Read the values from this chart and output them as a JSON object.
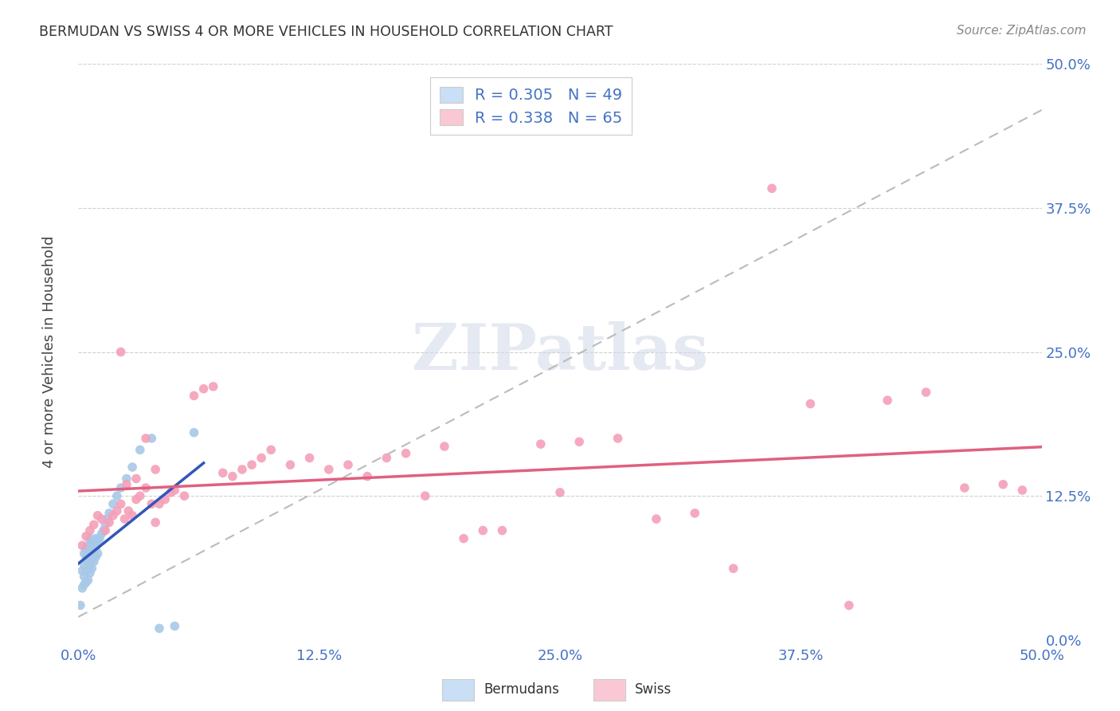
{
  "title": "BERMUDAN VS SWISS 4 OR MORE VEHICLES IN HOUSEHOLD CORRELATION CHART",
  "source": "Source: ZipAtlas.com",
  "ylabel": "4 or more Vehicles in Household",
  "xlim": [
    0.0,
    0.5
  ],
  "ylim": [
    0.0,
    0.5
  ],
  "xtick_labels": [
    "0.0%",
    "12.5%",
    "25.0%",
    "37.5%",
    "50.0%"
  ],
  "xtick_vals": [
    0.0,
    0.125,
    0.25,
    0.375,
    0.5
  ],
  "ytick_labels": [
    "0.0%",
    "12.5%",
    "25.0%",
    "37.5%",
    "50.0%"
  ],
  "ytick_vals": [
    0.0,
    0.125,
    0.25,
    0.375,
    0.5
  ],
  "bermudan_color": "#a8c8e8",
  "swiss_color": "#f4a0b8",
  "bermudan_line_color": "#3355bb",
  "swiss_line_color": "#e06080",
  "R_bermudan": 0.305,
  "N_bermudan": 49,
  "R_swiss": 0.338,
  "N_swiss": 65,
  "legend_box_color_bermudan": "#c8dff5",
  "legend_box_color_swiss": "#fac8d5",
  "watermark": "ZIPatlas",
  "background_color": "#ffffff",
  "grid_color": "#d0d0d0",
  "dash_line_color": "#bbbbbb",
  "bermudan_x": [
    0.001,
    0.002,
    0.002,
    0.003,
    0.003,
    0.003,
    0.003,
    0.004,
    0.004,
    0.004,
    0.004,
    0.005,
    0.005,
    0.005,
    0.005,
    0.005,
    0.006,
    0.006,
    0.006,
    0.006,
    0.006,
    0.007,
    0.007,
    0.007,
    0.007,
    0.008,
    0.008,
    0.008,
    0.009,
    0.009,
    0.009,
    0.01,
    0.01,
    0.011,
    0.012,
    0.013,
    0.014,
    0.015,
    0.016,
    0.018,
    0.02,
    0.022,
    0.025,
    0.028,
    0.032,
    0.038,
    0.042,
    0.05,
    0.06
  ],
  "bermudan_y": [
    0.03,
    0.045,
    0.06,
    0.048,
    0.055,
    0.065,
    0.075,
    0.05,
    0.06,
    0.072,
    0.08,
    0.052,
    0.062,
    0.068,
    0.075,
    0.082,
    0.058,
    0.065,
    0.072,
    0.08,
    0.088,
    0.062,
    0.07,
    0.078,
    0.085,
    0.068,
    0.075,
    0.082,
    0.072,
    0.08,
    0.088,
    0.075,
    0.085,
    0.088,
    0.092,
    0.095,
    0.1,
    0.105,
    0.11,
    0.118,
    0.125,
    0.132,
    0.14,
    0.15,
    0.165,
    0.175,
    0.01,
    0.012,
    0.18
  ],
  "swiss_x": [
    0.002,
    0.004,
    0.006,
    0.008,
    0.01,
    0.012,
    0.014,
    0.016,
    0.018,
    0.02,
    0.022,
    0.024,
    0.026,
    0.028,
    0.03,
    0.032,
    0.035,
    0.038,
    0.04,
    0.042,
    0.045,
    0.048,
    0.05,
    0.055,
    0.06,
    0.065,
    0.07,
    0.075,
    0.08,
    0.085,
    0.09,
    0.095,
    0.1,
    0.11,
    0.12,
    0.13,
    0.14,
    0.15,
    0.16,
    0.17,
    0.18,
    0.19,
    0.2,
    0.21,
    0.22,
    0.24,
    0.26,
    0.28,
    0.3,
    0.32,
    0.34,
    0.36,
    0.38,
    0.4,
    0.42,
    0.44,
    0.46,
    0.48,
    0.49,
    0.022,
    0.025,
    0.03,
    0.035,
    0.04,
    0.25
  ],
  "swiss_y": [
    0.082,
    0.09,
    0.095,
    0.1,
    0.108,
    0.105,
    0.095,
    0.102,
    0.108,
    0.112,
    0.118,
    0.105,
    0.112,
    0.108,
    0.122,
    0.125,
    0.132,
    0.118,
    0.102,
    0.118,
    0.122,
    0.128,
    0.13,
    0.125,
    0.212,
    0.218,
    0.22,
    0.145,
    0.142,
    0.148,
    0.152,
    0.158,
    0.165,
    0.152,
    0.158,
    0.148,
    0.152,
    0.142,
    0.158,
    0.162,
    0.125,
    0.168,
    0.088,
    0.095,
    0.095,
    0.17,
    0.172,
    0.175,
    0.105,
    0.11,
    0.062,
    0.392,
    0.205,
    0.03,
    0.208,
    0.215,
    0.132,
    0.135,
    0.13,
    0.25,
    0.135,
    0.14,
    0.175,
    0.148,
    0.128
  ]
}
